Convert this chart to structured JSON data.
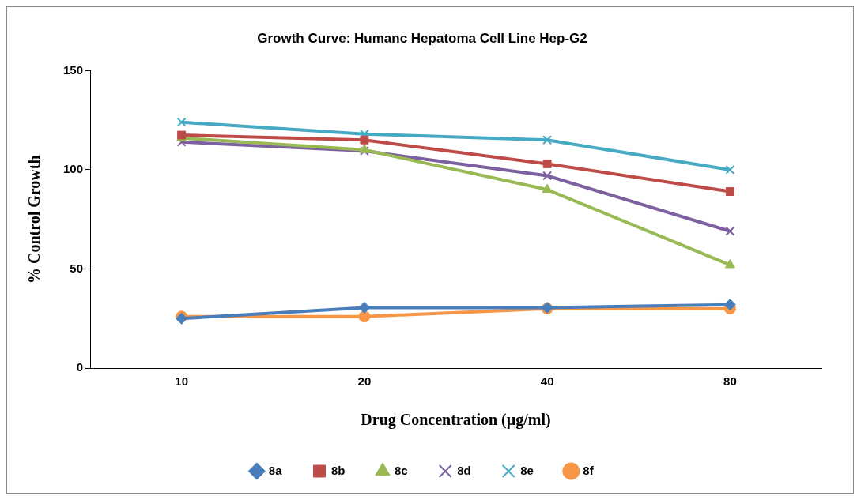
{
  "chart_data": {
    "type": "line",
    "title": "Growth Curve: Humanc Hepatoma Cell Line Hep-G2",
    "xlabel": "Drug Concentration (µg/ml)",
    "ylabel": "% Control Growth",
    "categories": [
      "10",
      "20",
      "40",
      "80"
    ],
    "series": [
      {
        "name": "8a",
        "color": "#4a7ebb",
        "marker": "diamond",
        "values": [
          25,
          30.5,
          30.5,
          32
        ]
      },
      {
        "name": "8b",
        "color": "#be4b48",
        "marker": "square",
        "values": [
          117.5,
          115,
          103,
          89
        ]
      },
      {
        "name": "8c",
        "color": "#98b954",
        "marker": "triangle",
        "values": [
          116,
          110,
          90,
          52
        ]
      },
      {
        "name": "8d",
        "color": "#7d60a0",
        "marker": "cross",
        "values": [
          114,
          109.5,
          97,
          69
        ]
      },
      {
        "name": "8e",
        "color": "#46aac5",
        "marker": "cross",
        "values": [
          124,
          118,
          115,
          100
        ]
      },
      {
        "name": "8f",
        "color": "#f79646",
        "marker": "circle",
        "values": [
          26,
          26,
          30,
          30
        ]
      }
    ],
    "ylim": [
      0,
      150
    ],
    "yticks": [
      0,
      50,
      100,
      150
    ],
    "grid": false,
    "legend": "bottom",
    "line_style": "solid"
  }
}
